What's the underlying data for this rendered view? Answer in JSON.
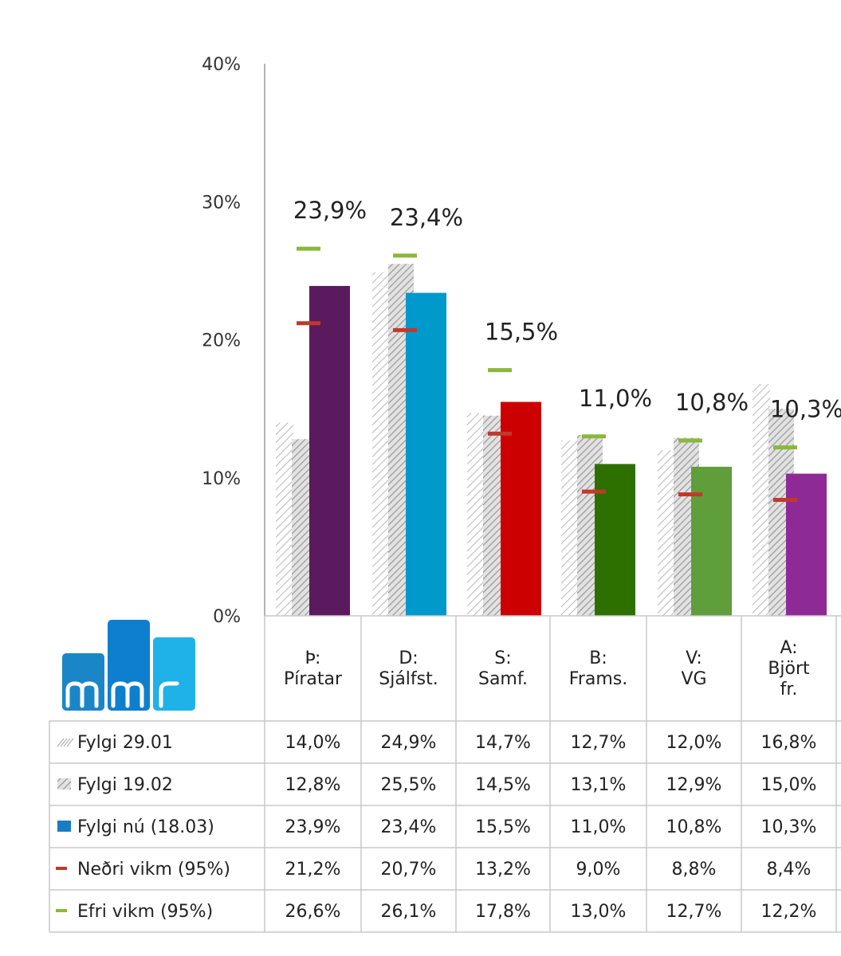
{
  "chart_data": {
    "type": "bar",
    "categories": [
      "Þ:\nPíratar",
      "D:\nSjálfst.",
      "S:\nSamf.",
      "B:\nFrams.",
      "V:\nVG",
      "A:\nBjört\nfr."
    ],
    "series": [
      {
        "name": "Fylgi 29.01",
        "kind": "bar-hatched-light",
        "values": [
          14.0,
          24.9,
          14.7,
          12.7,
          12.0,
          16.8
        ]
      },
      {
        "name": "Fylgi 19.02",
        "kind": "bar-hatched-dark",
        "values": [
          12.8,
          25.5,
          14.5,
          13.1,
          12.9,
          15.0
        ]
      },
      {
        "name": "Fylgi nú (18.03)",
        "kind": "bar-solid",
        "values": [
          23.9,
          23.4,
          15.5,
          11.0,
          10.8,
          10.3
        ]
      },
      {
        "name": "Neðri vikm (95%)",
        "kind": "marker",
        "values": [
          21.2,
          20.7,
          13.2,
          9.0,
          8.8,
          8.4
        ]
      },
      {
        "name": "Efri vikm (95%)",
        "kind": "marker",
        "values": [
          26.6,
          26.1,
          17.8,
          13.0,
          12.7,
          12.2
        ]
      }
    ],
    "table_values": [
      [
        "14,0%",
        "24,9%",
        "14,7%",
        "12,7%",
        "12,0%",
        "16,8%"
      ],
      [
        "12,8%",
        "25,5%",
        "14,5%",
        "13,1%",
        "12,9%",
        "15,0%"
      ],
      [
        "23,9%",
        "23,4%",
        "15,5%",
        "11,0%",
        "10,8%",
        "10,3%"
      ],
      [
        "21,2%",
        "20,7%",
        "13,2%",
        "9,0%",
        "8,8%",
        "8,4%"
      ],
      [
        "26,6%",
        "26,1%",
        "17,8%",
        "13,0%",
        "12,7%",
        "12,2%"
      ]
    ],
    "data_labels": [
      "23,9%",
      "23,4%",
      "15,5%",
      "11,0%",
      "10,8%",
      "10,3%"
    ],
    "bar_colors": [
      "#5b1a5e",
      "#0099cc",
      "#cc0000",
      "#2e7000",
      "#5f9e3a",
      "#8e2a96"
    ],
    "lower_marker_color": "#c0392b",
    "upper_marker_color": "#8ab83a",
    "legend_swatch_color": "#1a7dc4",
    "yticks": [
      "0%",
      "10%",
      "20%",
      "30%",
      "40%"
    ],
    "ylim": [
      0,
      40
    ],
    "grid": false,
    "legend": "table-rows-below"
  },
  "logo": {
    "text": "mmr",
    "colors": [
      "#1a86c8",
      "#0e7fcf",
      "#1fb2e8"
    ]
  }
}
